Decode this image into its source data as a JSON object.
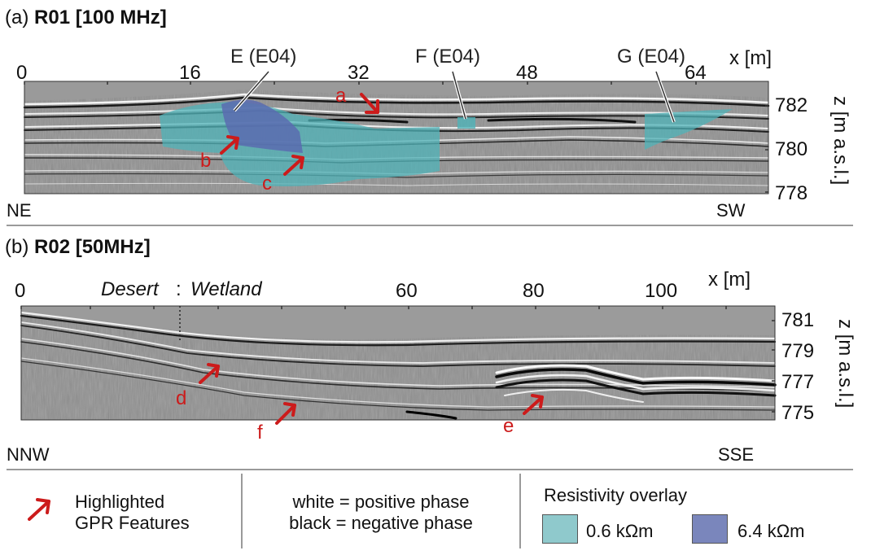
{
  "panel_a": {
    "prefix": "(a)",
    "title": "R01 [100 MHz]",
    "x_unit": "x [m]",
    "x_ticks": [
      "0",
      "16",
      "32",
      "48",
      "64"
    ],
    "z_unit": "z [m a.s.l.]",
    "z_ticks": [
      "782",
      "780",
      "778"
    ],
    "left_dir": "NE",
    "right_dir": "SW",
    "callouts": [
      "E (E04)",
      "F (E04)",
      "G (E04)"
    ],
    "features": [
      "a",
      "b",
      "c"
    ]
  },
  "panel_b": {
    "prefix": "(b)",
    "title": "R02 [50MHz]",
    "x_unit": "x [m]",
    "x_ticks": [
      "0",
      "60",
      "80",
      "100"
    ],
    "zone_left": "Desert",
    "zone_sep": ":",
    "zone_right": "Wetland",
    "z_unit": "z [m a.s.l.]",
    "z_ticks": [
      "781",
      "779",
      "777",
      "775"
    ],
    "left_dir": "NNW",
    "right_dir": "SSE",
    "features": [
      "d",
      "e",
      "f"
    ]
  },
  "legend": {
    "arrow_line1": "Highlighted",
    "arrow_line2": "GPR Features",
    "phase_line1": "white = positive phase",
    "phase_line2": "black = negative phase",
    "resistivity_title": "Resistivity overlay",
    "low_label": "0.6 kΩm",
    "high_label": "6.4 kΩm"
  },
  "colors": {
    "overlay_low": "#4fb3b8",
    "overlay_high": "#5a6bb0",
    "feature_arrow": "#cc1b1b",
    "radargram_bg": "#8c8c8c"
  }
}
